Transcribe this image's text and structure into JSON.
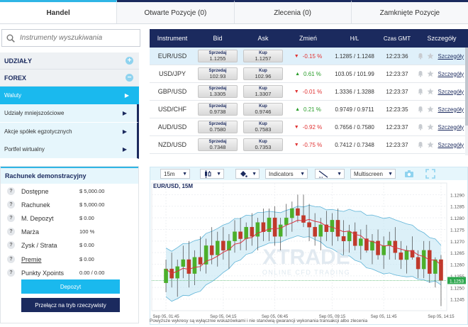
{
  "tabs": [
    {
      "label": "Handel"
    },
    {
      "label": "Otwarte Pozycje (0)"
    },
    {
      "label": "Zlecenia (0)"
    },
    {
      "label": "Zamknięte Pozycje"
    }
  ],
  "search": {
    "placeholder": "Instrumenty wyszukiwania"
  },
  "categories": [
    {
      "label": "UDZIAŁY",
      "toggle": "+"
    },
    {
      "label": "FOREX",
      "toggle": "−"
    }
  ],
  "subcategories": [
    {
      "label": "Waluty"
    },
    {
      "label": "Udziały mniejszościowe"
    },
    {
      "label": "Akcje spółek egzotycznych"
    },
    {
      "label": "Portfel wirtualny"
    }
  ],
  "account": {
    "title": "Rachunek demonstracyjny",
    "rows": [
      {
        "label": "Dostępne",
        "value": "$ 5,000.00"
      },
      {
        "label": "Rachunek",
        "value": "$ 5,000.00"
      },
      {
        "label": "M. Depozyt",
        "value": "$ 0.00"
      },
      {
        "label": "Marża",
        "value": "100 %"
      },
      {
        "label": "Zysk / Strata",
        "value": "$ 0.00"
      },
      {
        "label": "Premie",
        "value": "$ 0.00"
      },
      {
        "label": "Punkty Xpoints",
        "value": "0.00 / 0.00"
      }
    ],
    "deposit_label": "Depozyt",
    "real_label": "Przełącz na tryb rzeczywisty"
  },
  "table": {
    "headers": [
      "Instrument",
      "Bid",
      "Ask",
      "Zmień",
      "H/L",
      "Czas GMT",
      "Szczegóły"
    ],
    "sell_label": "Sprzedaj",
    "buy_label": "Kup",
    "details_label": "Szczegóły",
    "rows": [
      {
        "instrument": "EUR/USD",
        "bid": "1.1255",
        "ask": "1.1257",
        "dir": "down",
        "change": "-0.15 %",
        "hl": "1.1285 / 1.1248",
        "time": "12:23:36"
      },
      {
        "instrument": "USD/JPY",
        "bid": "102.93",
        "ask": "102.96",
        "dir": "up",
        "change": "0.61 %",
        "hl": "103.05 / 101.99",
        "time": "12:23:37"
      },
      {
        "instrument": "GBP/USD",
        "bid": "1.3305",
        "ask": "1.3307",
        "dir": "down",
        "change": "-0.01 %",
        "hl": "1.3336 / 1.3288",
        "time": "12:23:37"
      },
      {
        "instrument": "USD/CHF",
        "bid": "0.9738",
        "ask": "0.9746",
        "dir": "up",
        "change": "0.21 %",
        "hl": "0.9749 / 0.9711",
        "time": "12:23:35"
      },
      {
        "instrument": "AUD/USD",
        "bid": "0.7580",
        "ask": "0.7583",
        "dir": "down",
        "change": "-0.92 %",
        "hl": "0.7656 / 0.7580",
        "time": "12:23:37"
      },
      {
        "instrument": "NZD/USD",
        "bid": "0.7348",
        "ask": "0.7353",
        "dir": "down",
        "change": "-0.75 %",
        "hl": "0.7412 / 0.7348",
        "time": "12:23:37"
      }
    ]
  },
  "chart_toolbar": {
    "timeframe": "15m",
    "indicators": "Indicators",
    "multiscreen": "Multiscreen"
  },
  "chart_data": {
    "type": "candlestick",
    "title": "EUR/USD, 15M",
    "watermark_main": "XTRADE",
    "watermark_sub": "ONLINE CFD TRADING",
    "ylim": [
      1.124,
      1.1295
    ],
    "y_ticks": [
      "1.1290",
      "1.1285",
      "1.1280",
      "1.1275",
      "1.1270",
      "1.1265",
      "1.1260",
      "1.1255",
      "1.1250",
      "1.1245"
    ],
    "x_ticks": [
      "Sep 05, 01:45",
      "Sep 05, 04:15",
      "Sep 05, 06:45",
      "Sep 05, 09:15",
      "Sep 05, 11:45",
      "Sep 05, 14:15"
    ],
    "current_price": "1.1253",
    "colors": {
      "up": "#4caf2a",
      "down": "#c0392b",
      "band": "#bfe4f3",
      "band_line": "#5fb4d8",
      "ma": "#d9333f"
    },
    "candles": [
      [
        1.1252,
        1.1262,
        1.1248,
        1.1258
      ],
      [
        1.1258,
        1.1265,
        1.125,
        1.1254
      ],
      [
        1.1254,
        1.1262,
        1.1246,
        1.1259
      ],
      [
        1.1259,
        1.1268,
        1.1254,
        1.1262
      ],
      [
        1.1262,
        1.127,
        1.125,
        1.1256
      ],
      [
        1.1256,
        1.1266,
        1.1251,
        1.1263
      ],
      [
        1.1263,
        1.1272,
        1.1257,
        1.126
      ],
      [
        1.126,
        1.1271,
        1.1256,
        1.1268
      ],
      [
        1.1268,
        1.1276,
        1.126,
        1.1264
      ],
      [
        1.1264,
        1.1274,
        1.1259,
        1.127
      ],
      [
        1.127,
        1.1276,
        1.1262,
        1.1266
      ],
      [
        1.1266,
        1.1273,
        1.1258,
        1.127
      ],
      [
        1.127,
        1.1279,
        1.1265,
        1.1274
      ],
      [
        1.1274,
        1.128,
        1.1266,
        1.1271
      ],
      [
        1.1271,
        1.1278,
        1.1266,
        1.1276
      ],
      [
        1.1276,
        1.1282,
        1.1268,
        1.1272
      ],
      [
        1.1272,
        1.128,
        1.1266,
        1.1278
      ],
      [
        1.1278,
        1.1284,
        1.127,
        1.1274
      ],
      [
        1.1274,
        1.1284,
        1.127,
        1.128
      ],
      [
        1.128,
        1.1285,
        1.1268,
        1.1272
      ],
      [
        1.1272,
        1.128,
        1.1266,
        1.1277
      ],
      [
        1.1277,
        1.1286,
        1.1272,
        1.128
      ],
      [
        1.128,
        1.1287,
        1.1274,
        1.1284
      ],
      [
        1.1284,
        1.129,
        1.1278,
        1.1281
      ],
      [
        1.1281,
        1.129,
        1.1276,
        1.1278
      ],
      [
        1.1278,
        1.1286,
        1.127,
        1.1276
      ],
      [
        1.1276,
        1.1282,
        1.1268,
        1.1272
      ],
      [
        1.1272,
        1.128,
        1.1266,
        1.1277
      ],
      [
        1.1277,
        1.1283,
        1.127,
        1.1274
      ],
      [
        1.1274,
        1.1282,
        1.1268,
        1.1279
      ],
      [
        1.1279,
        1.1284,
        1.127,
        1.1272
      ],
      [
        1.1272,
        1.1279,
        1.1264,
        1.127
      ],
      [
        1.127,
        1.1277,
        1.1265,
        1.1274
      ],
      [
        1.1274,
        1.1278,
        1.1266,
        1.1268
      ],
      [
        1.1268,
        1.1275,
        1.1262,
        1.1271
      ],
      [
        1.1271,
        1.1277,
        1.1265,
        1.1266
      ],
      [
        1.1266,
        1.1273,
        1.126,
        1.127
      ],
      [
        1.127,
        1.1275,
        1.1262,
        1.1264
      ],
      [
        1.1264,
        1.1272,
        1.1258,
        1.1268
      ],
      [
        1.1268,
        1.1274,
        1.1262,
        1.127
      ],
      [
        1.127,
        1.1276,
        1.1262,
        1.1265
      ],
      [
        1.1265,
        1.127,
        1.1258,
        1.1262
      ],
      [
        1.1262,
        1.1268,
        1.1256,
        1.1266
      ],
      [
        1.1266,
        1.1272,
        1.1262,
        1.1263
      ],
      [
        1.1263,
        1.1266,
        1.1254,
        1.1258
      ],
      [
        1.1258,
        1.127,
        1.1254,
        1.1266
      ],
      [
        1.1266,
        1.127,
        1.1252,
        1.1256
      ],
      [
        1.1256,
        1.1263,
        1.125,
        1.1262
      ],
      [
        1.1262,
        1.1264,
        1.1242,
        1.1253
      ]
    ]
  },
  "disclaimer": "Powyższe wykresy są wyłącznie wskazówkami i nie stanowią gwarancji wykonania transakcji albo zlecenia"
}
